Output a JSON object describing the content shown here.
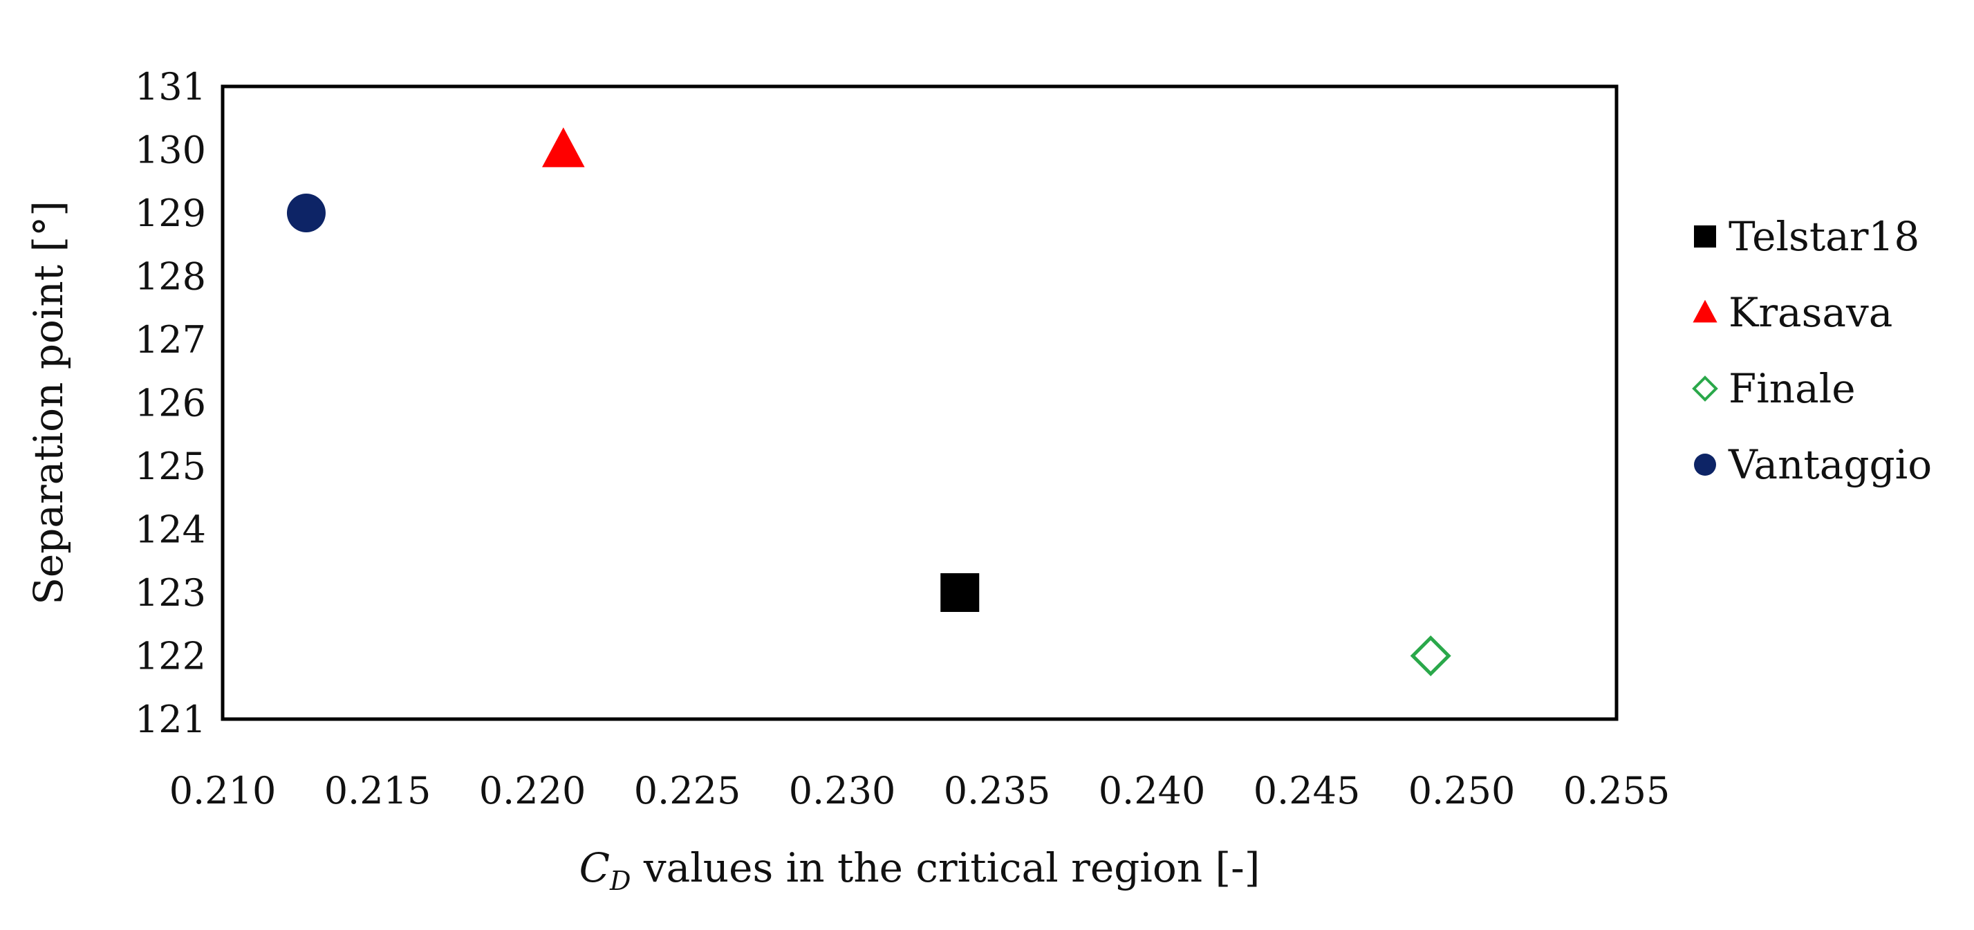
{
  "chart_data": {
    "type": "scatter",
    "title": "",
    "xlabel_main": "C",
    "xlabel_sub": "D",
    "xlabel_rest": " values in the critical region [-]",
    "ylabel": "Separation point [°]",
    "xlim": [
      0.21,
      0.255
    ],
    "ylim": [
      121,
      131
    ],
    "xticks": [
      "0.210",
      "0.215",
      "0.220",
      "0.225",
      "0.230",
      "0.235",
      "0.240",
      "0.245",
      "0.250",
      "0.255"
    ],
    "yticks": [
      "121",
      "122",
      "123",
      "124",
      "125",
      "126",
      "127",
      "128",
      "129",
      "130",
      "131"
    ],
    "grid": false,
    "legend_position": "right",
    "series": [
      {
        "name": "Telstar18",
        "marker": "square",
        "filled": true,
        "color": "#000000",
        "x": 0.2338,
        "y": 123
      },
      {
        "name": "Krasava",
        "marker": "triangle",
        "filled": true,
        "color": "#ff0000",
        "x": 0.221,
        "y": 130
      },
      {
        "name": "Finale",
        "marker": "diamond",
        "filled": false,
        "color": "#2aa84a",
        "x": 0.249,
        "y": 122
      },
      {
        "name": "Vantaggio",
        "marker": "circle",
        "filled": true,
        "color": "#0d2466",
        "x": 0.2127,
        "y": 129
      }
    ]
  }
}
